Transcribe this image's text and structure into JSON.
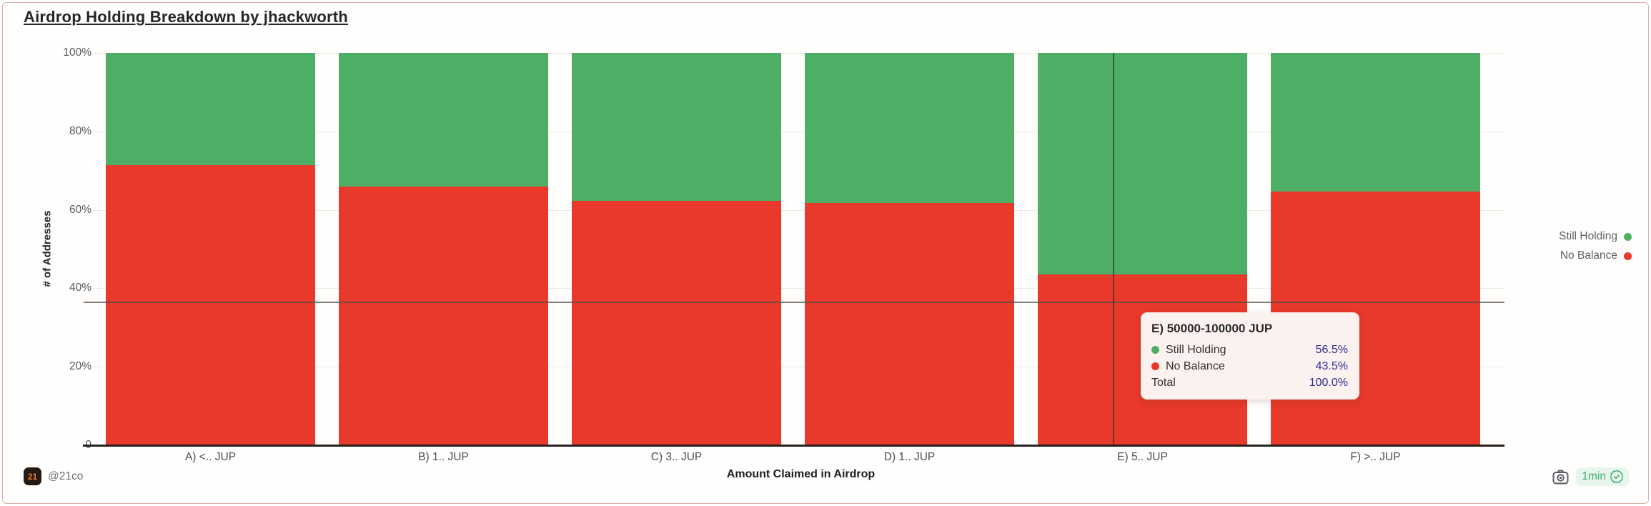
{
  "title": "Airdrop Holding Breakdown by jhackworth",
  "chart_data": {
    "type": "bar",
    "stacked": true,
    "stack_order": "top-to-bottom",
    "title": "Airdrop Holding Breakdown by jhackworth",
    "categories": [
      "A) <.. JUP",
      "B) 1.. JUP",
      "C) 3.. JUP",
      "D) 1.. JUP",
      "E) 5.. JUP",
      "F) >.. JUP"
    ],
    "series": [
      {
        "name": "Still Holding",
        "color": "#4fae66",
        "values": [
          28.6,
          34.0,
          37.7,
          38.3,
          56.5,
          35.3
        ]
      },
      {
        "name": "No Balance",
        "color": "#e8392b",
        "values": [
          71.4,
          66.0,
          62.3,
          61.7,
          43.5,
          64.7
        ]
      }
    ],
    "xlabel": "Amount Claimed in Airdrop",
    "ylabel": "# of Addresses",
    "y_ticks": [
      "100%",
      "80%",
      "60%",
      "40%",
      "20%",
      "0"
    ],
    "ylim": [
      0,
      100
    ],
    "unit": "percent",
    "grid": true,
    "legend_position": "right"
  },
  "tooltip": {
    "title": "E) 50000-100000 JUP",
    "rows": [
      {
        "label": "Still Holding",
        "value": "56.5%",
        "dot_color": "#4fae66"
      },
      {
        "label": "No Balance",
        "value": "43.5%",
        "dot_color": "#e8392b"
      },
      {
        "label": "Total",
        "value": "100.0%"
      }
    ]
  },
  "legend": {
    "items": [
      {
        "label": "Still Holding",
        "color": "#4fae66"
      },
      {
        "label": "No Balance",
        "color": "#e8392b"
      }
    ]
  },
  "footer": {
    "logo_text": "21",
    "handle": "@21co",
    "refresh_badge": "1min"
  },
  "colors": {
    "still_holding": "#4fae66",
    "no_balance": "#e8392b",
    "card_border": "#ddb5a6",
    "tooltip_bg": "#fbf1ee",
    "tooltip_value": "#2d2d96",
    "badge_bg": "#e7f6ed",
    "badge_text": "#3fae6a",
    "logo_accent": "#ee7b30"
  }
}
